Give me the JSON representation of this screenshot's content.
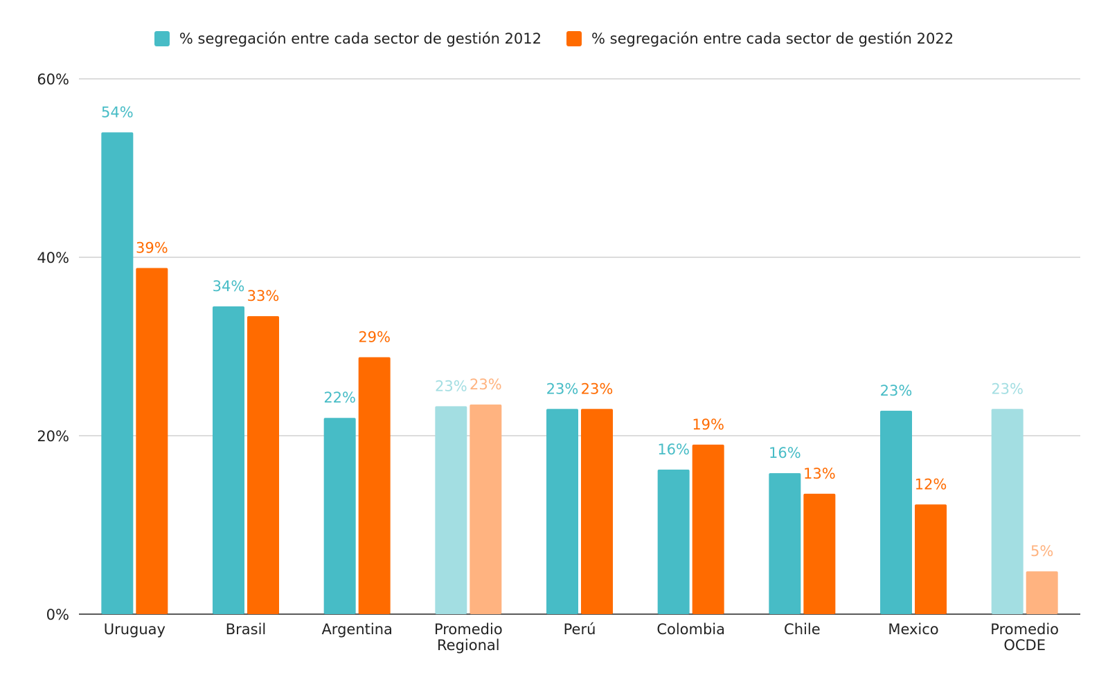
{
  "chart_data": {
    "type": "bar",
    "categories": [
      "Uruguay",
      "Brasil",
      "Argentina",
      "Promedio Regional",
      "Perú",
      "Colombia",
      "Chile",
      "Mexico",
      "Promedio OCDE"
    ],
    "series": [
      {
        "name": "% segregación entre cada sector de gestión 2012",
        "values": [
          54,
          34.5,
          22,
          23.3,
          23,
          16.2,
          15.8,
          22.8,
          23
        ],
        "labels": [
          "54%",
          "34%",
          "22%",
          "23%",
          "23%",
          "16%",
          "16%",
          "23%",
          "23%"
        ],
        "color": "#47BCC6",
        "light_color": "#A3DEE2"
      },
      {
        "name": "% segregación entre cada sector de gestión 2022",
        "values": [
          38.8,
          33.4,
          28.8,
          23.5,
          23,
          19,
          13.5,
          12.3,
          4.8
        ],
        "labels": [
          "39%",
          "33%",
          "29%",
          "23%",
          "23%",
          "19%",
          "13%",
          "12%",
          "5%"
        ],
        "color": "#FF6B00",
        "light_color": "#FFB380"
      }
    ],
    "highlight_light_categories": [
      "Promedio Regional",
      "Promedio OCDE"
    ],
    "ylim": [
      0,
      60
    ],
    "yticks": [
      0,
      20,
      40,
      60
    ],
    "ytick_labels": [
      "0%",
      "20%",
      "40%",
      "60%"
    ],
    "grid": true,
    "legend_position": "top-center",
    "title": "",
    "xlabel": "",
    "ylabel": ""
  }
}
